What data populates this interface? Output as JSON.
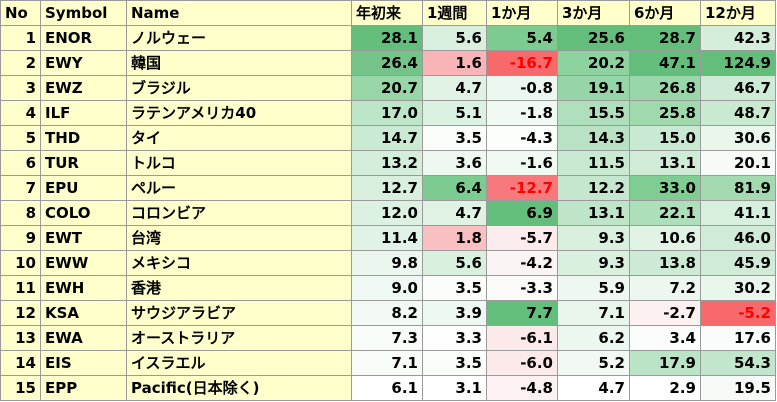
{
  "headers": [
    "No",
    "Symbol",
    "Name",
    "年初来",
    "1週間",
    "1か月",
    "3か月",
    "6か月",
    "12か月"
  ],
  "rows": [
    {
      "no": "1",
      "symbol": "ENOR",
      "name": "ノルウェー",
      "values": [
        "28.1",
        "5.6",
        "5.4",
        "25.6",
        "28.7",
        "42.3"
      ],
      "colors": [
        "#63be7b",
        "#d9f0df",
        "#7ccc91",
        "#63be7b",
        "#63be7b",
        "#d5eedb"
      ]
    },
    {
      "no": "2",
      "symbol": "EWY",
      "name": "韓国",
      "values": [
        "26.4",
        "1.6",
        "-16.7",
        "20.2",
        "47.1",
        "124.9"
      ],
      "colors": [
        "#74c48a",
        "#f8b4b6",
        "#f8696b",
        "#8dd29f",
        "#63be7b",
        "#63be7b"
      ]
    },
    {
      "no": "3",
      "symbol": "EWZ",
      "name": "ブラジル",
      "values": [
        "20.7",
        "4.7",
        "-0.8",
        "19.1",
        "26.8",
        "46.7"
      ],
      "colors": [
        "#98d6a8",
        "#dff2e4",
        "#ecf7ef",
        "#96d5a7",
        "#99d6aa",
        "#ceebd5"
      ]
    },
    {
      "no": "4",
      "symbol": "ILF",
      "name": "ラテンアメリカ40",
      "values": [
        "17.0",
        "5.1",
        "-1.8",
        "15.5",
        "25.8",
        "48.7"
      ],
      "colors": [
        "#bde5c7",
        "#dbf1e1",
        "#f1f9f3",
        "#b0dfbd",
        "#a0d9ae",
        "#c9e9d1"
      ]
    },
    {
      "no": "5",
      "symbol": "THD",
      "name": "タイ",
      "values": [
        "14.7",
        "3.5",
        "-4.3",
        "14.3",
        "15.0",
        "30.6"
      ],
      "colors": [
        "#cbead3",
        "#fbfdfb",
        "#fcfefc",
        "#b8e2c3",
        "#cae9d2",
        "#e8f6ec"
      ]
    },
    {
      "no": "6",
      "symbol": "TUR",
      "name": "トルコ",
      "values": [
        "13.2",
        "3.6",
        "-1.6",
        "11.5",
        "13.1",
        "20.1"
      ],
      "colors": [
        "#d5eedb",
        "#eef8f1",
        "#f0f9f2",
        "#c9e9d1",
        "#d0ecd7",
        "#f6fbf8"
      ]
    },
    {
      "no": "7",
      "symbol": "EPU",
      "name": "ペルー",
      "values": [
        "12.7",
        "6.4",
        "-12.7",
        "12.2",
        "33.0",
        "81.9"
      ],
      "colors": [
        "#d8efdd",
        "#7ccc91",
        "#f8797b",
        "#c5e7ce",
        "#80cd94",
        "#a3daaf"
      ]
    },
    {
      "no": "8",
      "symbol": "COLO",
      "name": "コロンビア",
      "values": [
        "12.0",
        "4.7",
        "6.9",
        "13.1",
        "22.1",
        "41.1"
      ],
      "colors": [
        "#ddf1e2",
        "#dff2e4",
        "#63be7b",
        "#bfe5c9",
        "#ade0ba",
        "#d7efdd"
      ]
    },
    {
      "no": "9",
      "symbol": "EWT",
      "name": "台湾",
      "values": [
        "11.4",
        "1.8",
        "-5.7",
        "9.3",
        "10.6",
        "46.0"
      ],
      "colors": [
        "#e1f3e6",
        "#f9c0c2",
        "#fcebec",
        "#d9f0df",
        "#e0f3e5",
        "#d0ecd7"
      ]
    },
    {
      "no": "10",
      "symbol": "EWW",
      "name": "メキシコ",
      "values": [
        "9.8",
        "5.6",
        "-4.2",
        "9.3",
        "13.8",
        "45.9"
      ],
      "colors": [
        "#ebf7ee",
        "#d9f0df",
        "#fbf4f4",
        "#d9f0df",
        "#cdebd4",
        "#d0ecd7"
      ]
    },
    {
      "no": "11",
      "symbol": "EWH",
      "name": "香港",
      "values": [
        "9.0",
        "3.5",
        "-3.3",
        "5.9",
        "7.2",
        "30.2"
      ],
      "colors": [
        "#eff8f2",
        "#fbfdfb",
        "#fdfafa",
        "#eef8f1",
        "#edf7f0",
        "#e9f6ec"
      ]
    },
    {
      "no": "12",
      "symbol": "KSA",
      "name": "サウジアラビア",
      "values": [
        "8.2",
        "3.9",
        "7.7",
        "7.1",
        "-2.7",
        "-5.2"
      ],
      "colors": [
        "#f3faf5",
        "#edf8f0",
        "#63be7b",
        "#e7f5eb",
        "#fcf0f0",
        "#f8696b"
      ]
    },
    {
      "no": "13",
      "symbol": "EWA",
      "name": "オーストラリア",
      "values": [
        "7.3",
        "3.3",
        "-6.1",
        "6.2",
        "3.4",
        "17.6"
      ],
      "colors": [
        "#f7fcf9",
        "#fdfefd",
        "#fce9e9",
        "#ecf7ef",
        "#fafdfb",
        "#f9fcfa"
      ]
    },
    {
      "no": "14",
      "symbol": "EIS",
      "name": "イスラエル",
      "values": [
        "7.1",
        "3.5",
        "-6.0",
        "5.2",
        "17.9",
        "54.3"
      ],
      "colors": [
        "#f8fcf9",
        "#fbfdfb",
        "#fce9ea",
        "#f2f9f4",
        "#bbe3c5",
        "#c1e6cb"
      ]
    },
    {
      "no": "15",
      "symbol": "EPP",
      "name": "Pacific(日本除く)",
      "values": [
        "6.1",
        "3.1",
        "-4.8",
        "4.7",
        "2.9",
        "19.5"
      ],
      "colors": [
        "#ffffff",
        "#ffffff",
        "#fcf2f2",
        "#ffffff",
        "#ffffff",
        "#f7fbf8"
      ]
    }
  ]
}
